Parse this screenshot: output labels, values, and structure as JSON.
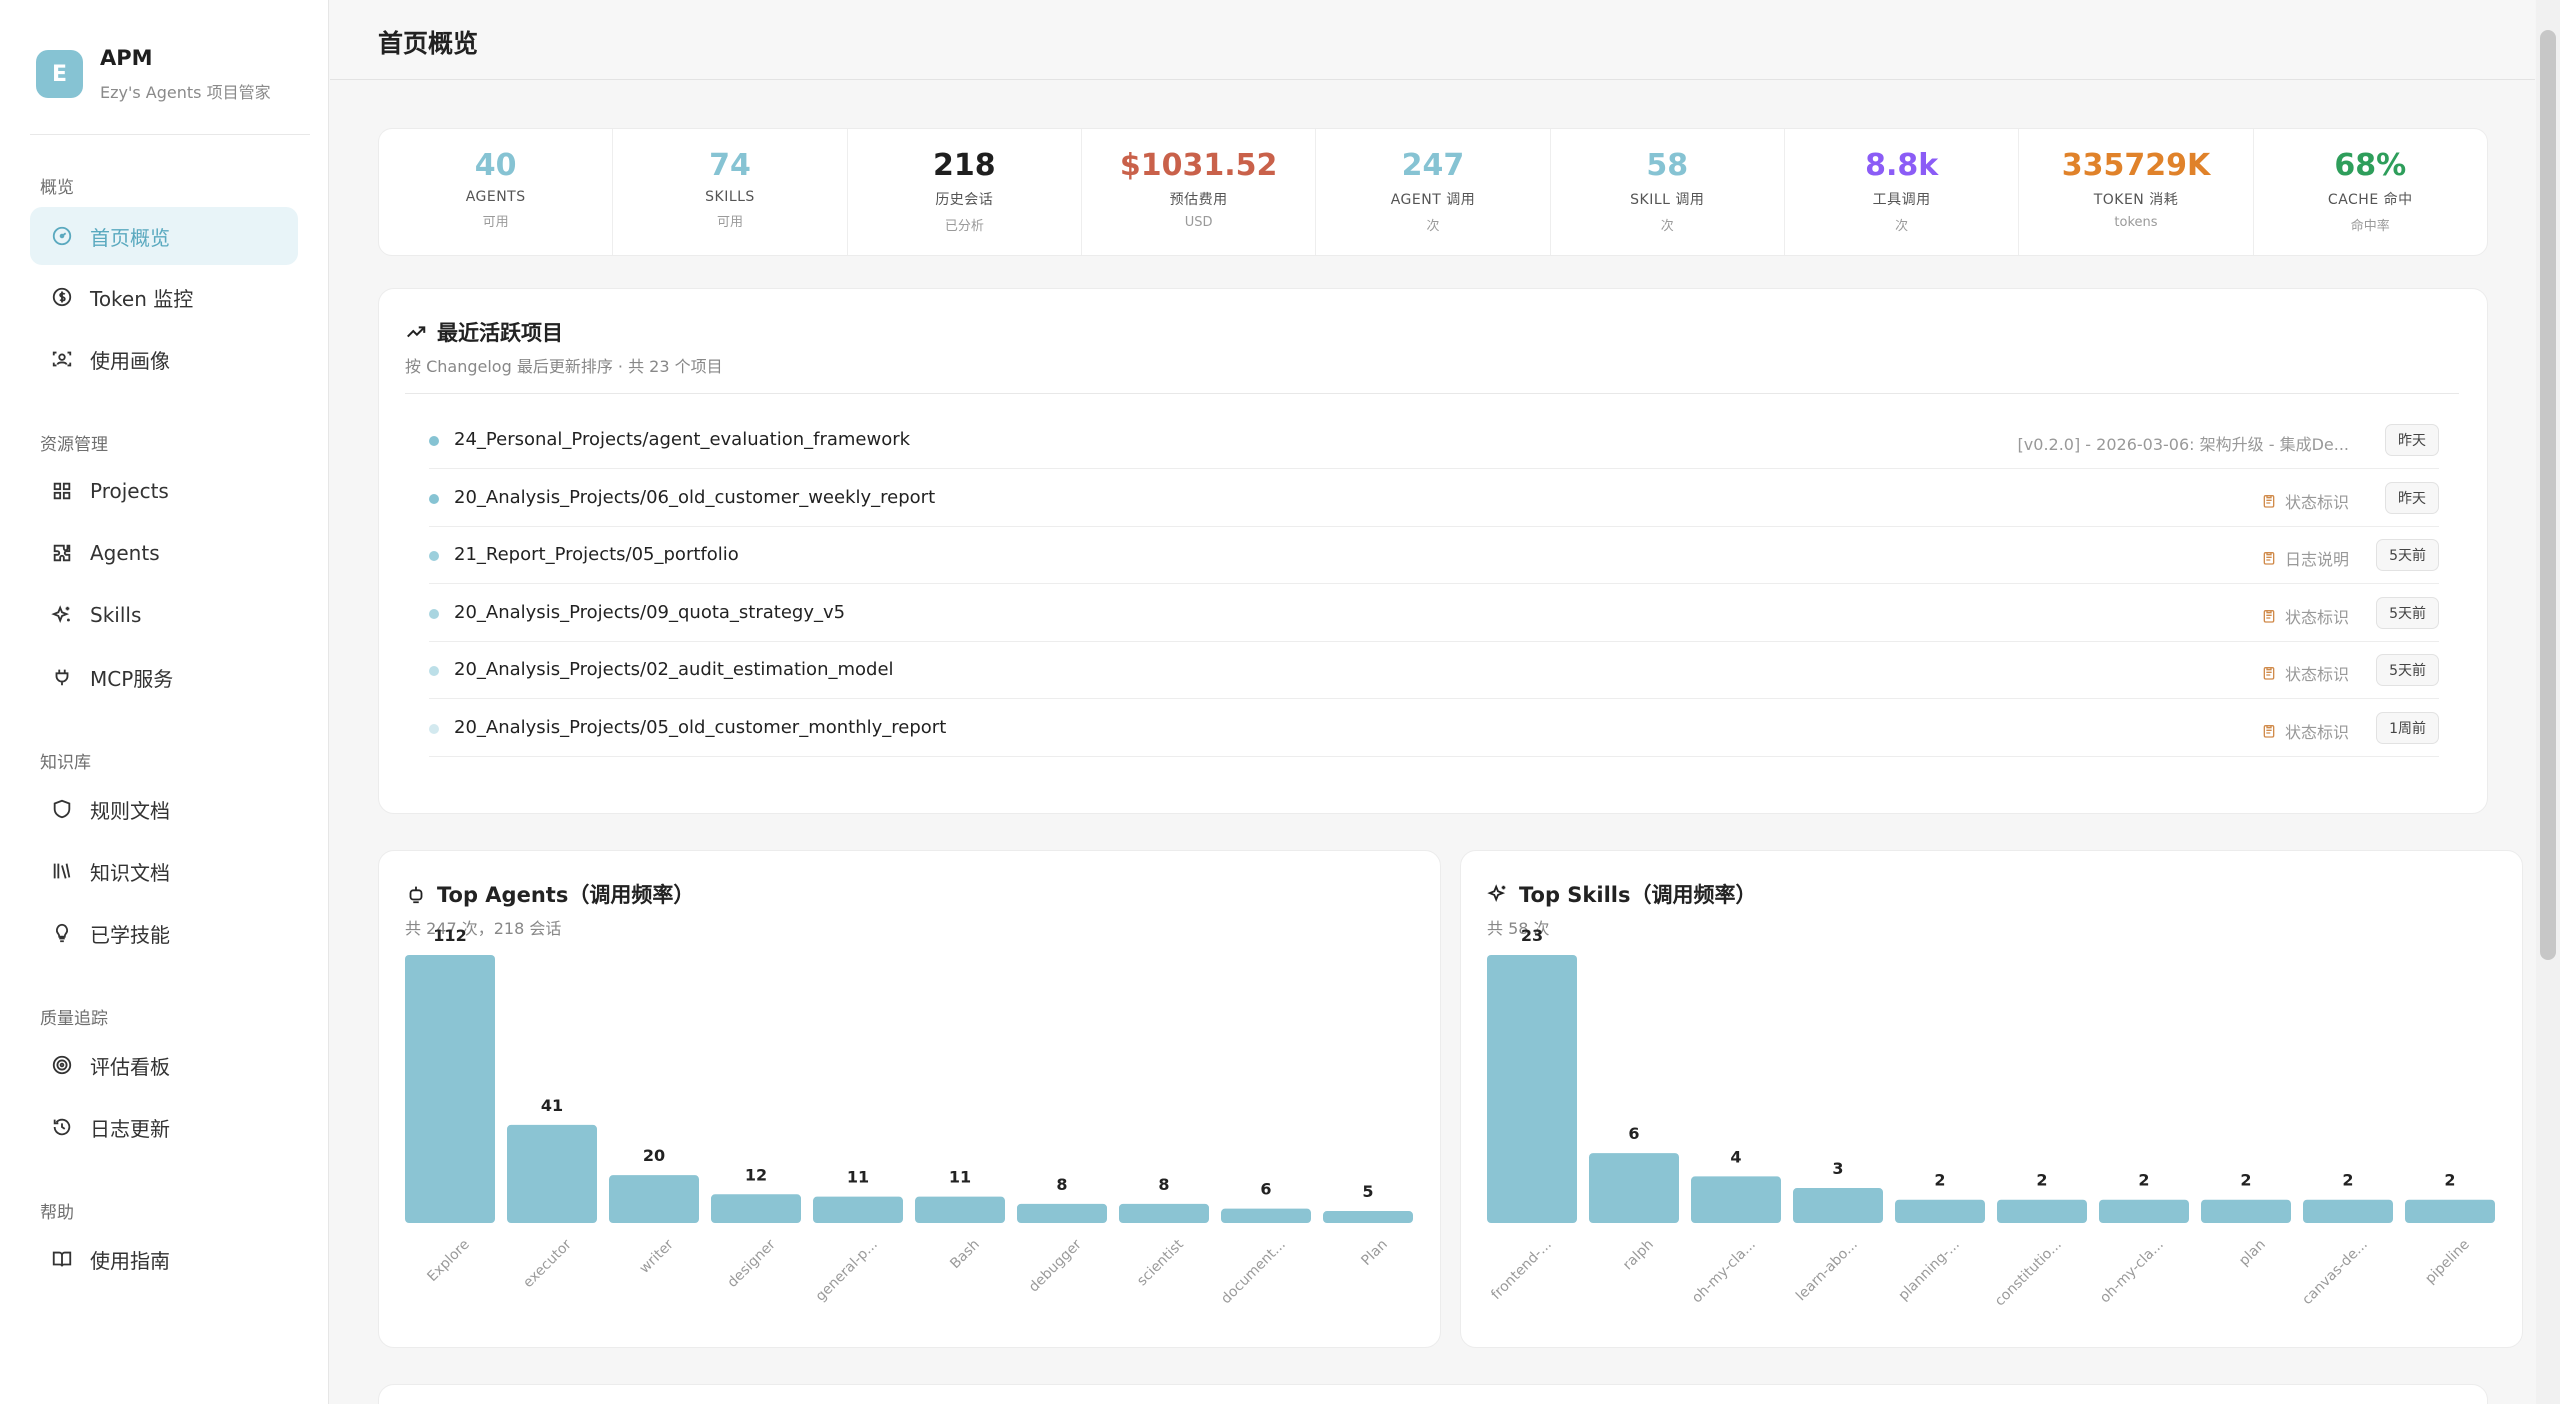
{
  "brand": {
    "logo_letter": "E",
    "name": "APM",
    "subtitle": "Ezy's Agents 项目管家"
  },
  "sidebar": {
    "groups": [
      {
        "label": "概览"
      },
      {
        "label": "资源管理"
      },
      {
        "label": "知识库"
      },
      {
        "label": "质量追踪"
      },
      {
        "label": "帮助"
      }
    ],
    "items": [
      {
        "label": "首页概览",
        "icon": "gauge-icon",
        "active": true
      },
      {
        "label": "Token 监控",
        "icon": "dollar-circle-icon"
      },
      {
        "label": "使用画像",
        "icon": "scan-user-icon"
      },
      {
        "label": "Projects",
        "icon": "grid-icon"
      },
      {
        "label": "Agents",
        "icon": "puzzle-icon"
      },
      {
        "label": "Skills",
        "icon": "sparkles-icon"
      },
      {
        "label": "MCP服务",
        "icon": "plug-icon"
      },
      {
        "label": "规则文档",
        "icon": "shield-icon"
      },
      {
        "label": "知识文档",
        "icon": "library-icon"
      },
      {
        "label": "已学技能",
        "icon": "lightbulb-icon"
      },
      {
        "label": "评估看板",
        "icon": "target-icon"
      },
      {
        "label": "日志更新",
        "icon": "history-icon"
      },
      {
        "label": "使用指南",
        "icon": "book-icon"
      }
    ]
  },
  "header": {
    "title": "首页概览"
  },
  "stats": [
    {
      "value": "40",
      "label": "AGENTS",
      "sub": "可用",
      "color": "#86c3d3"
    },
    {
      "value": "74",
      "label": "SKILLS",
      "sub": "可用",
      "color": "#86c3d3"
    },
    {
      "value": "218",
      "label": "历史会话",
      "sub": "已分析",
      "color": "#1f1f1f"
    },
    {
      "value": "$1031.52",
      "label": "预估费用",
      "sub": "USD",
      "color": "#c9614a"
    },
    {
      "value": "247",
      "label": "AGENT 调用",
      "sub": "次",
      "color": "#86c3d3"
    },
    {
      "value": "58",
      "label": "SKILL 调用",
      "sub": "次",
      "color": "#86c3d3"
    },
    {
      "value": "8.8k",
      "label": "工具调用",
      "sub": "次",
      "color": "#8b5cf6"
    },
    {
      "value": "335729K",
      "label": "TOKEN 消耗",
      "sub": "tokens",
      "color": "#e0822a"
    },
    {
      "value": "68%",
      "label": "CACHE 命中",
      "sub": "命中率",
      "color": "#2e9e5b"
    }
  ],
  "recent": {
    "title": "最近活跃项目",
    "subtitle": "按 Changelog 最后更新排序 · 共 23 个项目",
    "rows": [
      {
        "name": "24_Personal_Projects/agent_evaluation_framework",
        "note": "[v0.2.0] - 2026-03-06: 架构升级 - 集成De...",
        "note_icon": false,
        "badge": "昨天",
        "dot": "#86c3d3"
      },
      {
        "name": "20_Analysis_Projects/06_old_customer_weekly_report",
        "note": "状态标识",
        "note_icon": true,
        "badge": "昨天",
        "dot": "#86c3d3"
      },
      {
        "name": "21_Report_Projects/05_portfolio",
        "note": "日志说明",
        "note_icon": true,
        "badge": "5天前",
        "dot": "#9ccfdc"
      },
      {
        "name": "20_Analysis_Projects/09_quota_strategy_v5",
        "note": "状态标识",
        "note_icon": true,
        "badge": "5天前",
        "dot": "#a9d5e0"
      },
      {
        "name": "20_Analysis_Projects/02_audit_estimation_model",
        "note": "状态标识",
        "note_icon": true,
        "badge": "5天前",
        "dot": "#bcdfe8"
      },
      {
        "name": "20_Analysis_Projects/05_old_customer_monthly_report",
        "note": "状态标识",
        "note_icon": true,
        "badge": "1周前",
        "dot": "#d3e9ef"
      }
    ]
  },
  "top_agents": {
    "title": "Top Agents（调用频率）",
    "subtitle": "共 247 次，218 会话"
  },
  "top_skills": {
    "title": "Top Skills（调用频率）",
    "subtitle": "共 58 次"
  },
  "chart_data": [
    {
      "type": "bar",
      "title": "Top Agents（调用频率）",
      "categories": [
        "Explore",
        "executor",
        "writer",
        "designer",
        "general-p...",
        "Bash",
        "debugger",
        "scientist",
        "document...",
        "Plan"
      ],
      "values": [
        112,
        41,
        20,
        12,
        11,
        11,
        8,
        8,
        6,
        5
      ],
      "color": "#8bc4d3",
      "grid": false
    },
    {
      "type": "bar",
      "title": "Top Skills（调用频率）",
      "categories": [
        "frontend-...",
        "ralph",
        "oh-my-cla...",
        "learn-abo...",
        "planning-...",
        "constitutio...",
        "oh-my-cla...",
        "plan",
        "canvas-de...",
        "pipeline"
      ],
      "values": [
        23,
        6,
        4,
        3,
        2,
        2,
        2,
        2,
        2,
        2
      ],
      "color": "#8bc4d3",
      "grid": false
    }
  ]
}
